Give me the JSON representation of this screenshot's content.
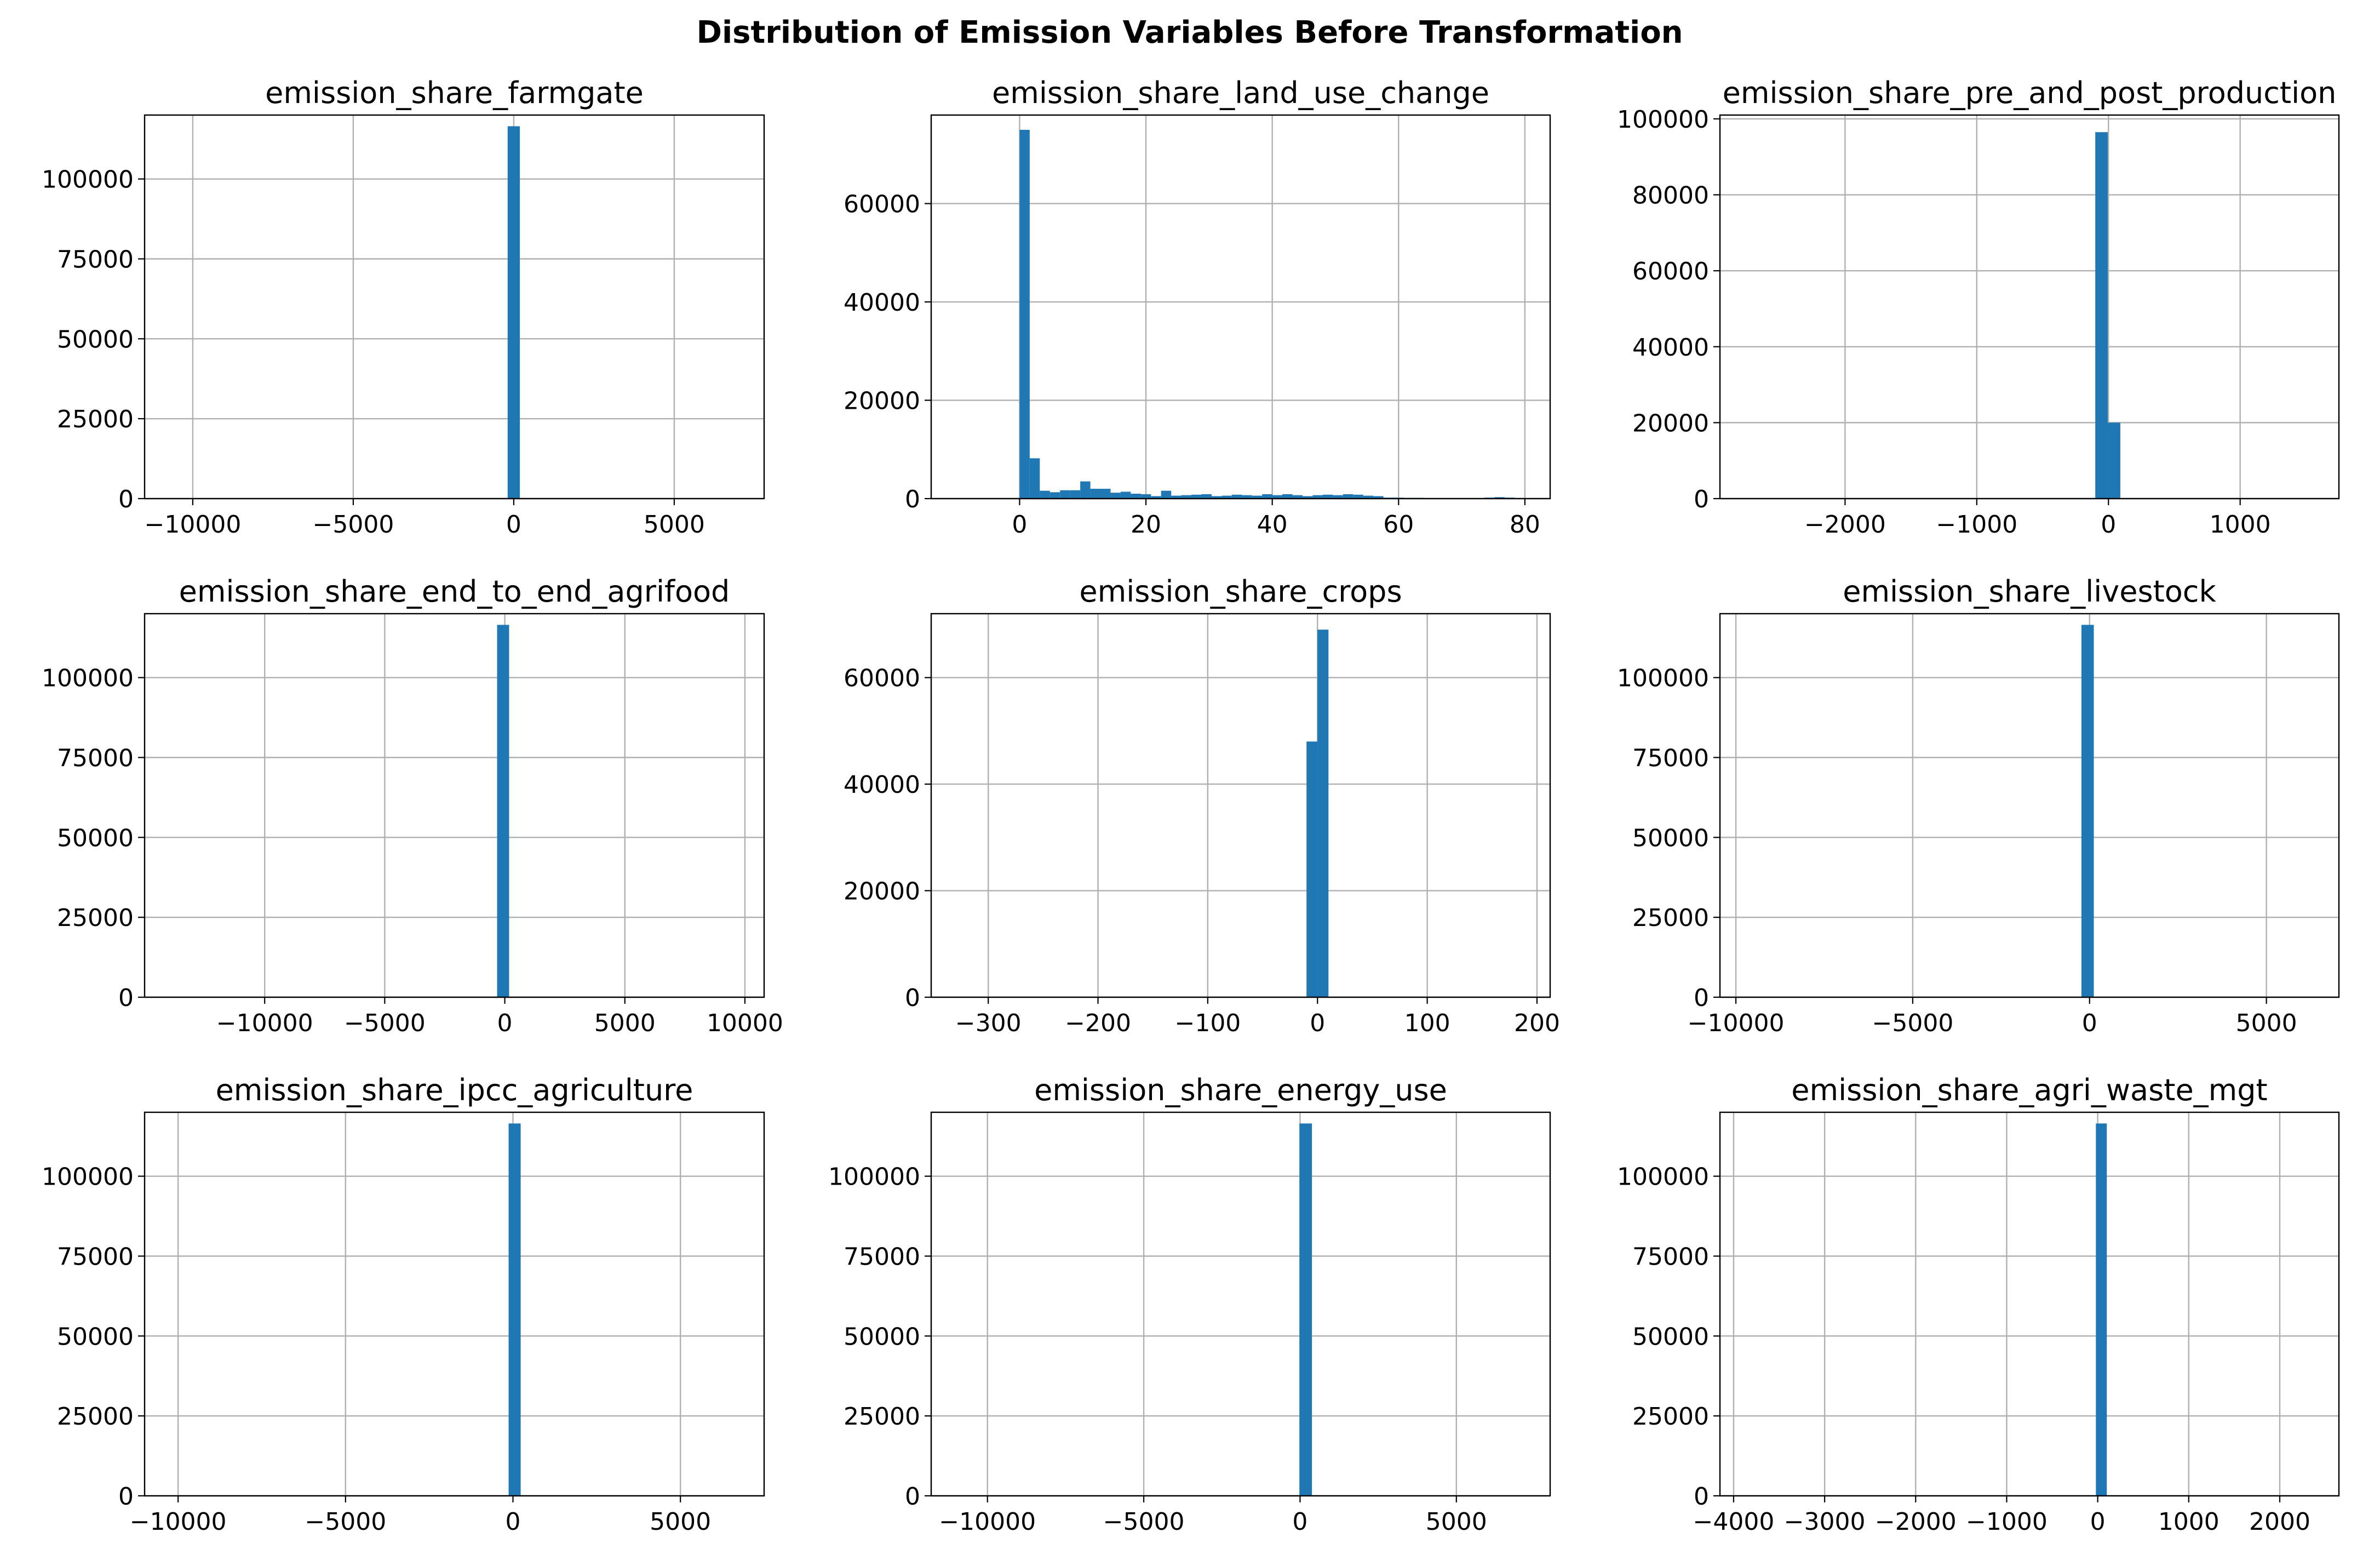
{
  "suptitle": "Distribution of Emission Variables Before Transformation",
  "colors": {
    "bar": "#1f77b4",
    "grid": "#b0b0b0",
    "axes": "#000000"
  },
  "chart_data": [
    {
      "type": "bar",
      "subtype": "histogram",
      "title": "emission_share_farmgate",
      "xlim": [
        -11500,
        7800
      ],
      "ylim": [
        0,
        120000
      ],
      "xticks": [
        -10000,
        -5000,
        0,
        5000
      ],
      "xtick_labels": [
        "−10000",
        "−5000",
        "0",
        "5000"
      ],
      "yticks": [
        0,
        25000,
        50000,
        75000,
        100000
      ],
      "yticks_labels": [
        "0",
        "25000",
        "50000",
        "75000",
        "100000"
      ],
      "grid": true,
      "bins": [
        {
          "x0": -190,
          "x1": 190,
          "count": 116500
        }
      ]
    },
    {
      "type": "bar",
      "subtype": "histogram",
      "title": "emission_share_land_use_change",
      "xlim": [
        -14,
        84
      ],
      "ylim": [
        0,
        78000
      ],
      "xticks": [
        0,
        20,
        40,
        60,
        80
      ],
      "xtick_labels": [
        "0",
        "20",
        "40",
        "60",
        "80"
      ],
      "yticks": [
        0,
        20000,
        40000,
        60000
      ],
      "yticks_labels": [
        "0",
        "20000",
        "40000",
        "60000"
      ],
      "grid": true,
      "bins": [
        {
          "x0": 0,
          "x1": 1.6,
          "count": 75000
        },
        {
          "x0": 1.6,
          "x1": 3.2,
          "count": 8200
        },
        {
          "x0": 3.2,
          "x1": 4.8,
          "count": 1600
        },
        {
          "x0": 4.8,
          "x1": 6.4,
          "count": 1300
        },
        {
          "x0": 6.4,
          "x1": 8.0,
          "count": 1700
        },
        {
          "x0": 8.0,
          "x1": 9.6,
          "count": 1700
        },
        {
          "x0": 9.6,
          "x1": 11.2,
          "count": 3500
        },
        {
          "x0": 11.2,
          "x1": 12.8,
          "count": 2000
        },
        {
          "x0": 12.8,
          "x1": 14.4,
          "count": 2000
        },
        {
          "x0": 14.4,
          "x1": 16.0,
          "count": 1200
        },
        {
          "x0": 16.0,
          "x1": 17.6,
          "count": 1400
        },
        {
          "x0": 17.6,
          "x1": 19.2,
          "count": 1000
        },
        {
          "x0": 19.2,
          "x1": 20.8,
          "count": 900
        },
        {
          "x0": 20.8,
          "x1": 22.4,
          "count": 500
        },
        {
          "x0": 22.4,
          "x1": 24.0,
          "count": 1600
        },
        {
          "x0": 24.0,
          "x1": 25.6,
          "count": 600
        },
        {
          "x0": 25.6,
          "x1": 27.2,
          "count": 700
        },
        {
          "x0": 27.2,
          "x1": 28.8,
          "count": 800
        },
        {
          "x0": 28.8,
          "x1": 30.4,
          "count": 900
        },
        {
          "x0": 30.4,
          "x1": 32.0,
          "count": 500
        },
        {
          "x0": 32.0,
          "x1": 33.6,
          "count": 600
        },
        {
          "x0": 33.6,
          "x1": 35.2,
          "count": 800
        },
        {
          "x0": 35.2,
          "x1": 36.8,
          "count": 700
        },
        {
          "x0": 36.8,
          "x1": 38.4,
          "count": 600
        },
        {
          "x0": 38.4,
          "x1": 40.0,
          "count": 900
        },
        {
          "x0": 40.0,
          "x1": 41.6,
          "count": 700
        },
        {
          "x0": 41.6,
          "x1": 43.2,
          "count": 900
        },
        {
          "x0": 43.2,
          "x1": 44.8,
          "count": 700
        },
        {
          "x0": 44.8,
          "x1": 46.4,
          "count": 500
        },
        {
          "x0": 46.4,
          "x1": 48.0,
          "count": 700
        },
        {
          "x0": 48.0,
          "x1": 49.6,
          "count": 800
        },
        {
          "x0": 49.6,
          "x1": 51.2,
          "count": 700
        },
        {
          "x0": 51.2,
          "x1": 52.8,
          "count": 900
        },
        {
          "x0": 52.8,
          "x1": 54.4,
          "count": 800
        },
        {
          "x0": 54.4,
          "x1": 56.0,
          "count": 600
        },
        {
          "x0": 56.0,
          "x1": 57.6,
          "count": 500
        },
        {
          "x0": 57.6,
          "x1": 59.2,
          "count": 200
        },
        {
          "x0": 59.2,
          "x1": 60.8,
          "count": 200
        },
        {
          "x0": 60.8,
          "x1": 62.4,
          "count": 150
        },
        {
          "x0": 62.4,
          "x1": 64.0,
          "count": 150
        },
        {
          "x0": 64.0,
          "x1": 65.6,
          "count": 100
        },
        {
          "x0": 65.6,
          "x1": 67.2,
          "count": 100
        },
        {
          "x0": 67.2,
          "x1": 68.8,
          "count": 100
        },
        {
          "x0": 68.8,
          "x1": 70.4,
          "count": 80
        },
        {
          "x0": 70.4,
          "x1": 72.0,
          "count": 80
        },
        {
          "x0": 72.0,
          "x1": 73.6,
          "count": 80
        },
        {
          "x0": 73.6,
          "x1": 75.2,
          "count": 200
        },
        {
          "x0": 75.2,
          "x1": 76.8,
          "count": 300
        },
        {
          "x0": 76.8,
          "x1": 78.4,
          "count": 200
        },
        {
          "x0": 78.4,
          "x1": 80.0,
          "count": 100
        }
      ]
    },
    {
      "type": "bar",
      "subtype": "histogram",
      "title": "emission_share_pre_and_post_production",
      "xlim": [
        -2950,
        1750
      ],
      "ylim": [
        0,
        101000
      ],
      "xticks": [
        -2000,
        -1000,
        0,
        1000
      ],
      "xtick_labels": [
        "−2000",
        "−1000",
        "0",
        "1000"
      ],
      "yticks": [
        0,
        20000,
        40000,
        60000,
        80000,
        100000
      ],
      "yticks_labels": [
        "0",
        "20000",
        "40000",
        "60000",
        "80000",
        "100000"
      ],
      "grid": true,
      "bins": [
        {
          "x0": -100,
          "x1": -5,
          "count": 96500
        },
        {
          "x0": -5,
          "x1": 90,
          "count": 20000
        }
      ]
    },
    {
      "type": "bar",
      "subtype": "histogram",
      "title": "emission_share_end_to_end_agrifood",
      "xlim": [
        -15000,
        10800
      ],
      "ylim": [
        0,
        120000
      ],
      "xticks": [
        -10000,
        -5000,
        0,
        5000,
        10000
      ],
      "xtick_labels": [
        "−10000",
        "−5000",
        "0",
        "5000",
        "10000"
      ],
      "yticks": [
        0,
        25000,
        50000,
        75000,
        100000
      ],
      "yticks_labels": [
        "0",
        "25000",
        "50000",
        "75000",
        "100000"
      ],
      "grid": true,
      "bins": [
        {
          "x0": -320,
          "x1": 180,
          "count": 116500
        }
      ]
    },
    {
      "type": "bar",
      "subtype": "histogram",
      "title": "emission_share_crops",
      "xlim": [
        -352,
        212
      ],
      "ylim": [
        0,
        72000
      ],
      "xticks": [
        -300,
        -200,
        -100,
        0,
        100,
        200
      ],
      "xtick_labels": [
        "−300",
        "−200",
        "−100",
        "0",
        "100",
        "200"
      ],
      "yticks": [
        0,
        20000,
        40000,
        60000
      ],
      "yticks_labels": [
        "0",
        "20000",
        "40000",
        "60000"
      ],
      "grid": true,
      "bins": [
        {
          "x0": -10,
          "x1": 0,
          "count": 48000
        },
        {
          "x0": 0,
          "x1": 10,
          "count": 69000
        }
      ]
    },
    {
      "type": "bar",
      "subtype": "histogram",
      "title": "emission_share_livestock",
      "xlim": [
        -10450,
        7050
      ],
      "ylim": [
        0,
        120000
      ],
      "xticks": [
        -10000,
        -5000,
        0,
        5000
      ],
      "xtick_labels": [
        "−10000",
        "−5000",
        "0",
        "5000"
      ],
      "yticks": [
        0,
        25000,
        50000,
        75000,
        100000
      ],
      "yticks_labels": [
        "0",
        "25000",
        "50000",
        "75000",
        "100000"
      ],
      "grid": true,
      "bins": [
        {
          "x0": -230,
          "x1": 120,
          "count": 116500
        }
      ]
    },
    {
      "type": "bar",
      "subtype": "histogram",
      "title": "emission_share_ipcc_agriculture",
      "xlim": [
        -11000,
        7500
      ],
      "ylim": [
        0,
        120000
      ],
      "xticks": [
        -10000,
        -5000,
        0,
        5000
      ],
      "xtick_labels": [
        "−10000",
        "−5000",
        "0",
        "5000"
      ],
      "yticks": [
        0,
        25000,
        50000,
        75000,
        100000
      ],
      "yticks_labels": [
        "0",
        "25000",
        "50000",
        "75000",
        "100000"
      ],
      "grid": true,
      "bins": [
        {
          "x0": -130,
          "x1": 230,
          "count": 116500
        }
      ]
    },
    {
      "type": "bar",
      "subtype": "histogram",
      "title": "emission_share_energy_use",
      "xlim": [
        -11800,
        8000
      ],
      "ylim": [
        0,
        120000
      ],
      "xticks": [
        -10000,
        -5000,
        0,
        5000
      ],
      "xtick_labels": [
        "−10000",
        "−5000",
        "0",
        "5000"
      ],
      "yticks": [
        0,
        25000,
        50000,
        75000,
        100000
      ],
      "yticks_labels": [
        "0",
        "25000",
        "50000",
        "75000",
        "100000"
      ],
      "grid": true,
      "bins": [
        {
          "x0": -20,
          "x1": 380,
          "count": 116500
        }
      ]
    },
    {
      "type": "bar",
      "subtype": "histogram",
      "title": "emission_share_agri_waste_mgt",
      "xlim": [
        -4150,
        2650
      ],
      "ylim": [
        0,
        120000
      ],
      "xticks": [
        -4000,
        -3000,
        -2000,
        -1000,
        0,
        1000,
        2000
      ],
      "xtick_labels": [
        "−4000",
        "−3000",
        "−2000",
        "−1000",
        "0",
        "1000",
        "2000"
      ],
      "yticks": [
        0,
        25000,
        50000,
        75000,
        100000
      ],
      "yticks_labels": [
        "0",
        "25000",
        "50000",
        "75000",
        "100000"
      ],
      "grid": true,
      "bins": [
        {
          "x0": -20,
          "x1": 100,
          "count": 116500
        }
      ]
    }
  ]
}
